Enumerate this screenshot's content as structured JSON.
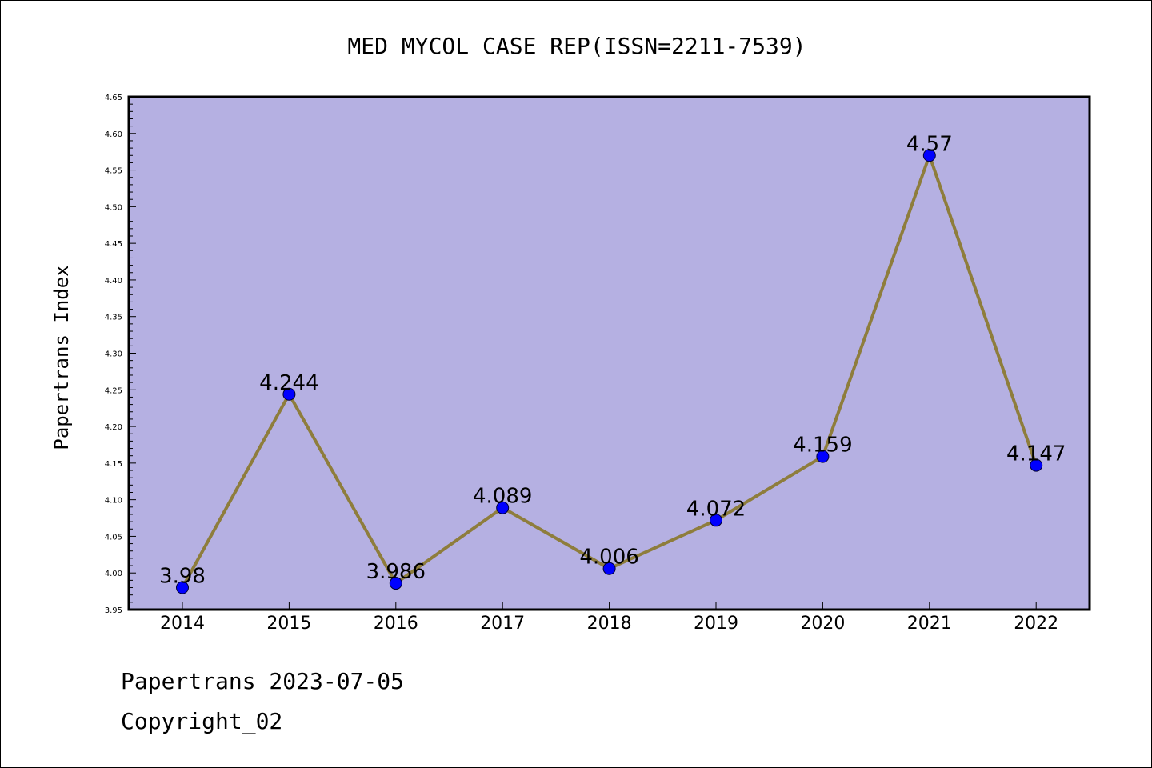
{
  "chart_data": {
    "type": "line",
    "title": "MED MYCOL CASE REP(ISSN=2211-7539)",
    "xlabel": "",
    "ylabel": "Papertrans Index",
    "categories": [
      "2014",
      "2015",
      "2016",
      "2017",
      "2018",
      "2019",
      "2020",
      "2021",
      "2022"
    ],
    "series": [
      {
        "values": [
          3.98,
          4.244,
          3.986,
          4.089,
          4.006,
          4.072,
          4.159,
          4.57,
          4.147
        ]
      }
    ],
    "data_labels": [
      "3.98",
      "4.244",
      "3.986",
      "4.089",
      "4.006",
      "4.072",
      "4.159",
      "4.57",
      "4.147"
    ],
    "ylim": [
      3.95,
      4.65
    ],
    "y_ticks": [
      "3.95",
      "4.00",
      "4.05",
      "4.10",
      "4.15",
      "4.20",
      "4.25",
      "4.30",
      "4.35",
      "4.40",
      "4.45",
      "4.50",
      "4.55",
      "4.60",
      "4.65"
    ],
    "grid": false,
    "legend": "none",
    "colors": {
      "plot_background": "#b5b0e2",
      "line": "#8e7d3c",
      "marker": "#0000ff"
    }
  },
  "footer": {
    "line1": "Papertrans 2023-07-05",
    "line2": "Copyright_02"
  }
}
